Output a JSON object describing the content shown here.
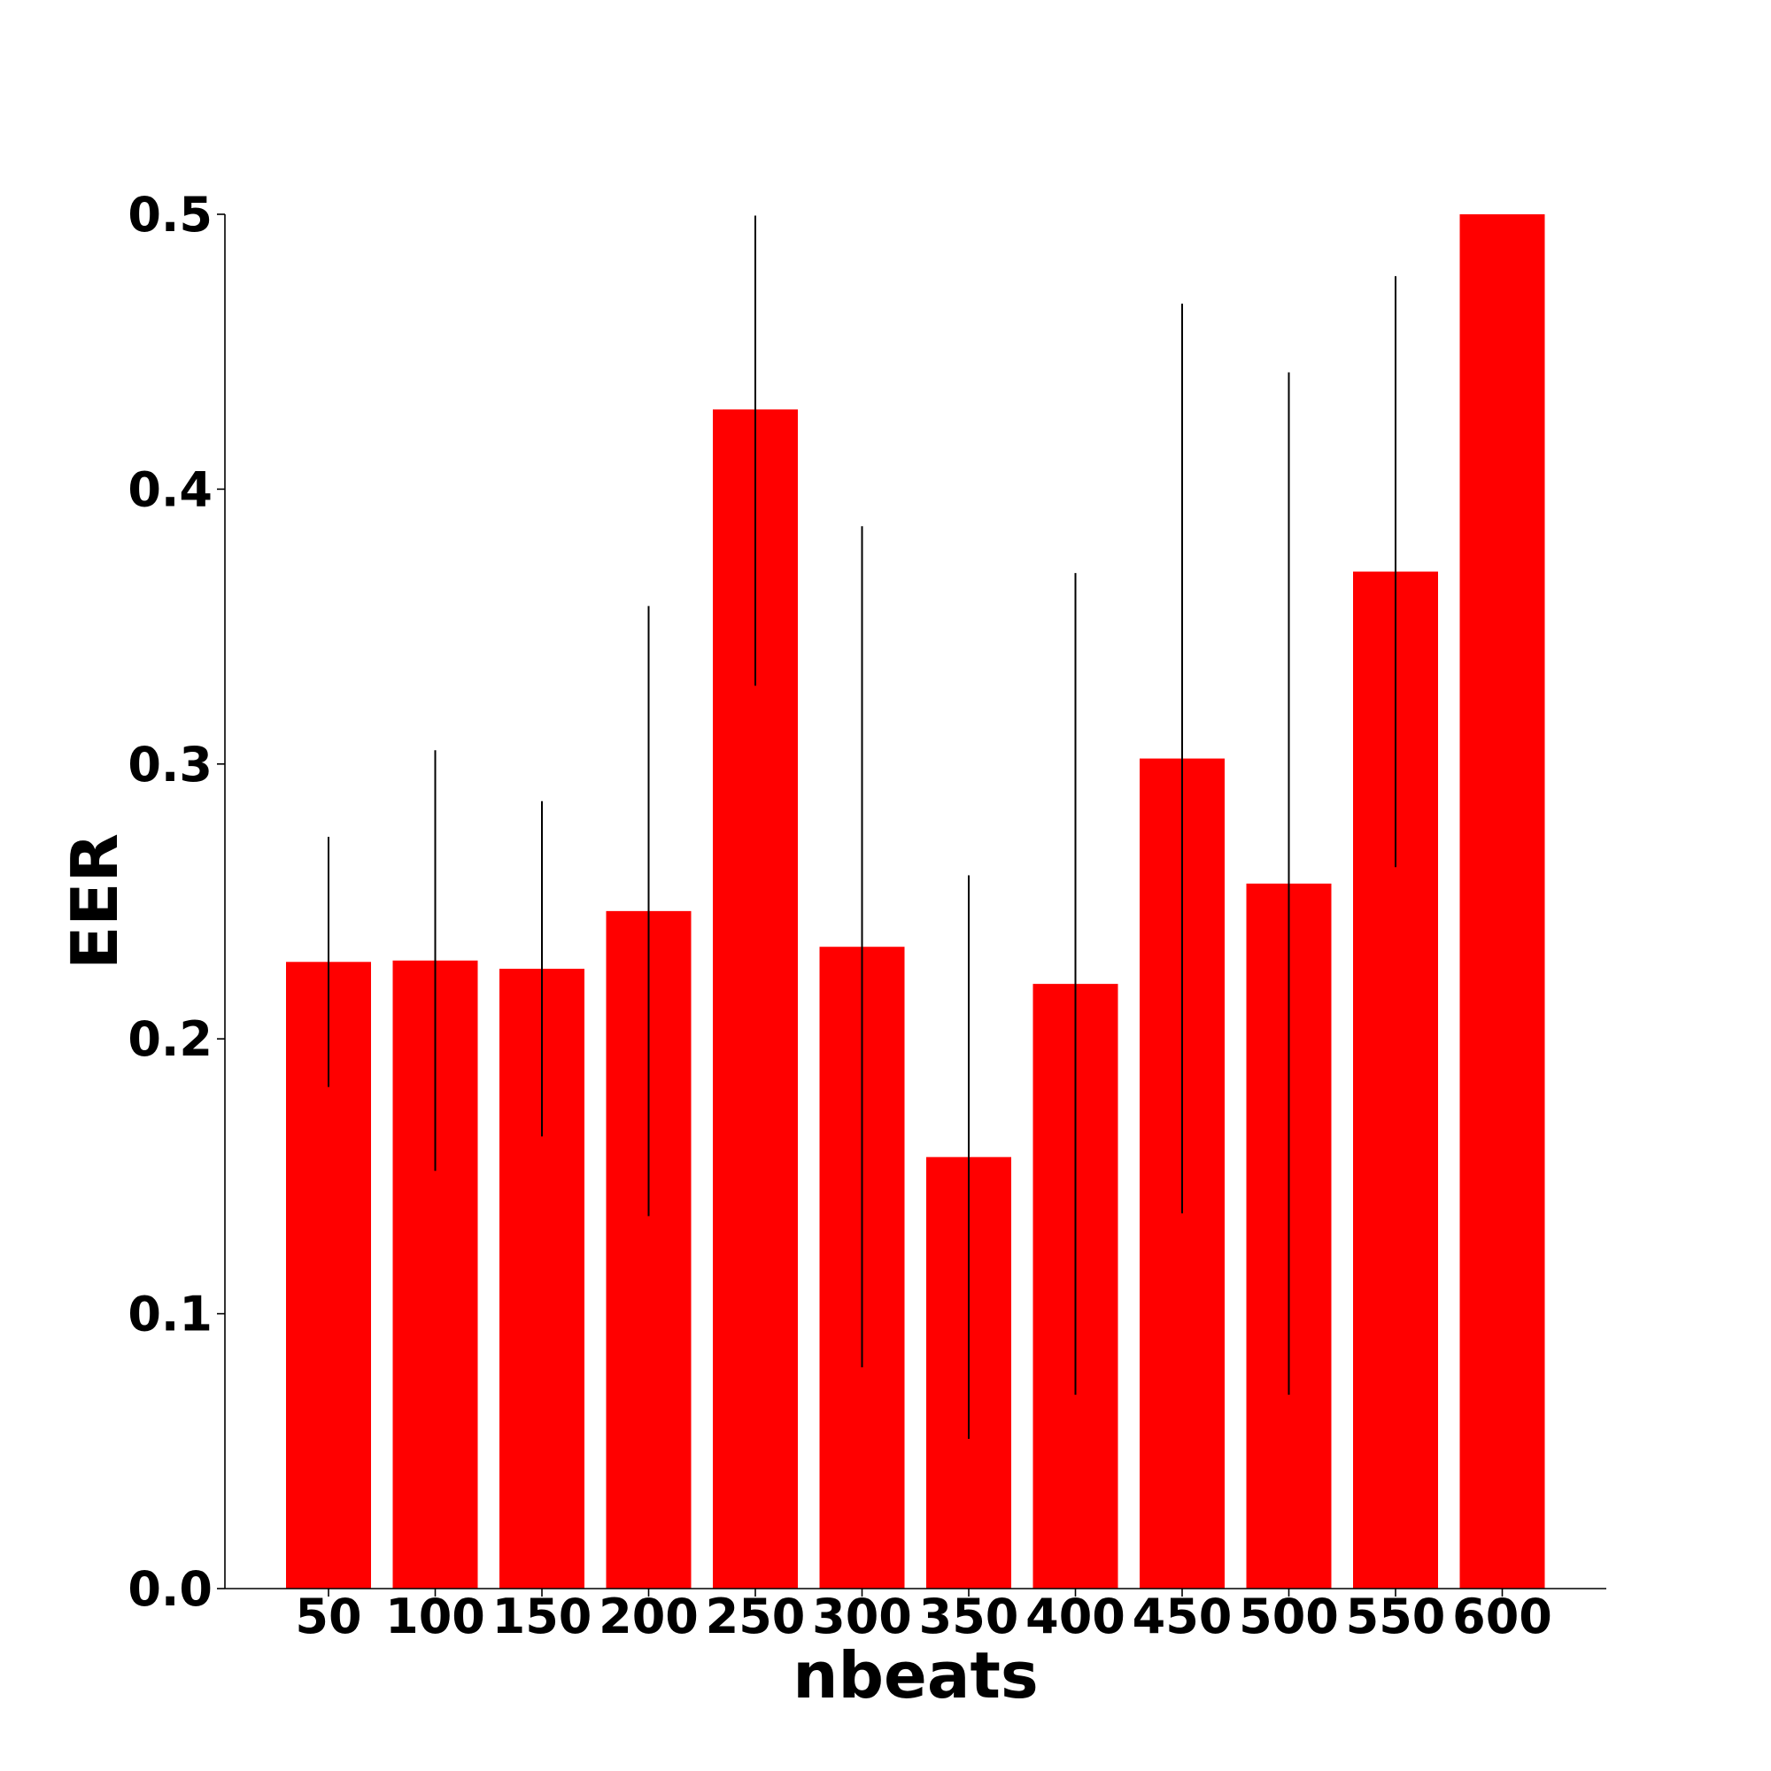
{
  "chart_data": {
    "type": "bar",
    "title": "",
    "xlabel": "nbeats",
    "ylabel": "EER",
    "categories": [
      "50",
      "100",
      "150",
      "200",
      "250",
      "300",
      "350",
      "400",
      "450",
      "500",
      "550",
      "600"
    ],
    "values": [
      0.228,
      0.2285,
      0.2255,
      0.2465,
      0.429,
      0.2335,
      0.157,
      0.22,
      0.302,
      0.2565,
      0.37,
      0.5
    ],
    "error_bars": [
      [
        0.1825,
        0.2735
      ],
      [
        0.152,
        0.305
      ],
      [
        0.1645,
        0.2865
      ],
      [
        0.1355,
        0.3575
      ],
      [
        0.3285,
        0.4995
      ],
      [
        0.0805,
        0.3865
      ],
      [
        0.0545,
        0.2595
      ],
      [
        0.0705,
        0.3695
      ],
      [
        0.1365,
        0.4675
      ],
      [
        0.0705,
        0.4425
      ],
      [
        0.2625,
        0.4775
      ],
      [
        0.5,
        0.5
      ]
    ],
    "ylim": [
      0,
      0.5
    ],
    "yticks": [
      "0.0",
      "0.1",
      "0.2",
      "0.3",
      "0.4",
      "0.5"
    ],
    "colors": {
      "bar": "#ff0000",
      "error_bar": "#000000",
      "axis": "#000000"
    },
    "grid": false,
    "legend": "none"
  }
}
